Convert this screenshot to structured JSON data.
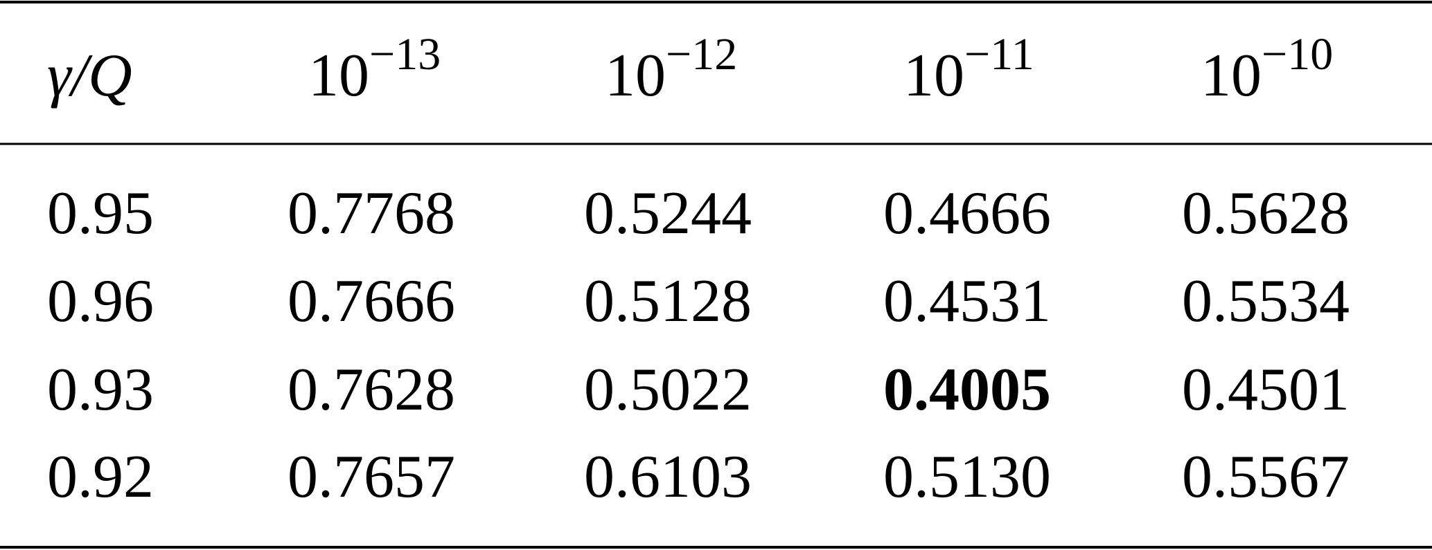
{
  "table": {
    "header": [
      {
        "text": "γ/Q"
      },
      {
        "base": "10",
        "exp": "−13"
      },
      {
        "base": "10",
        "exp": "−12"
      },
      {
        "base": "10",
        "exp": "−11"
      },
      {
        "base": "10",
        "exp": "−10"
      }
    ],
    "rows": [
      [
        "0.95",
        "0.7768",
        "0.5244",
        "0.4666",
        "0.5628"
      ],
      [
        "0.96",
        "0.7666",
        "0.5128",
        "0.4531",
        "0.5534"
      ],
      [
        "0.93",
        "0.7628",
        "0.5022",
        "0.4005",
        "0.4501"
      ],
      [
        "0.92",
        "0.7657",
        "0.6103",
        "0.5130",
        "0.5567"
      ]
    ],
    "bold_cells": [
      [
        2,
        3
      ]
    ]
  }
}
